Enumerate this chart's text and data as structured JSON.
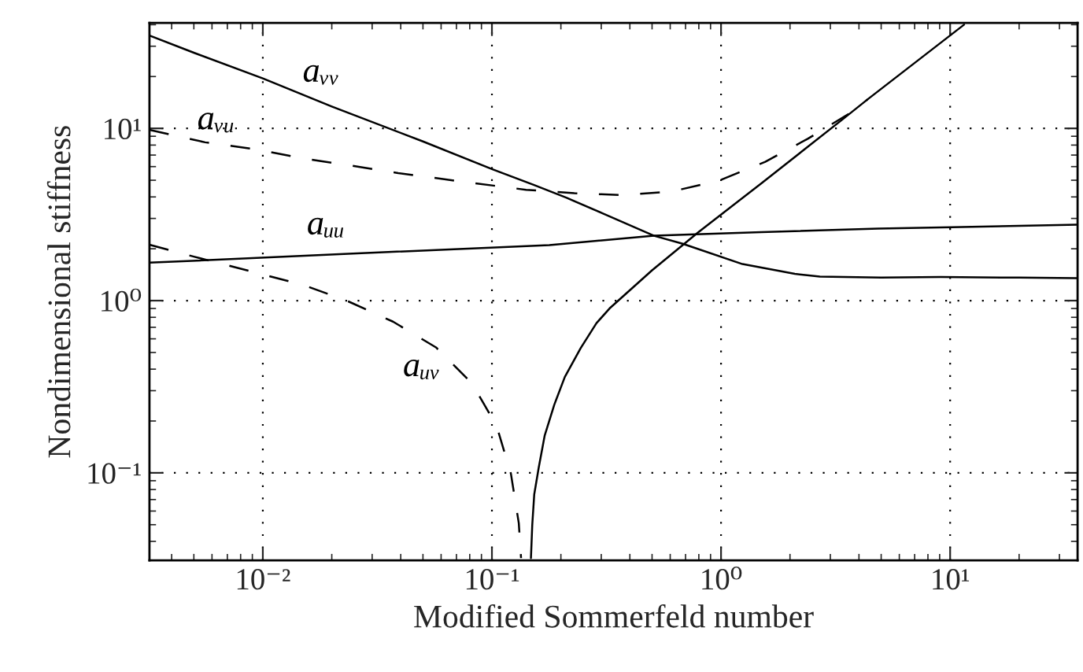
{
  "chart_data": {
    "type": "line",
    "xlabel": "Modified Sommerfeld number",
    "ylabel": "Nondimensional stiffness",
    "log": "xy",
    "xlim": [
      0.0032,
      36
    ],
    "ylim": [
      0.031,
      41
    ],
    "xticks": [
      {
        "value": 0.01,
        "label": "10⁻²"
      },
      {
        "value": 0.1,
        "label": "10⁻¹"
      },
      {
        "value": 1,
        "label": "10⁰"
      },
      {
        "value": 10,
        "label": "10¹"
      }
    ],
    "yticks": [
      {
        "value": 0.1,
        "label": "10⁻¹"
      },
      {
        "value": 1,
        "label": "10⁰"
      },
      {
        "value": 10,
        "label": "10¹"
      }
    ],
    "grid": true,
    "series": [
      {
        "name": "aᵥᵥ",
        "color": "#000000",
        "line_style": "solid",
        "x": [
          0.0032,
          0.005,
          0.01,
          0.02,
          0.05,
          0.1,
          0.152,
          0.212,
          0.3,
          0.51,
          0.68,
          1.24,
          2.1,
          2.7,
          5,
          9.1,
          20,
          36
        ],
        "values": [
          34.6,
          27.5,
          19.5,
          13.4,
          8.4,
          5.8,
          4.7,
          3.95,
          3.24,
          2.38,
          2.14,
          1.63,
          1.43,
          1.38,
          1.36,
          1.37,
          1.36,
          1.35
        ]
      },
      {
        "name": "aᵥᵤ",
        "color": "#000000",
        "line_style": "dashed",
        "x": [
          0.0032,
          0.0056,
          0.0091,
          0.0149,
          0.0239,
          0.039,
          0.075,
          0.141,
          0.229,
          0.373,
          0.61,
          0.99,
          1.56,
          2.39,
          3.78,
          4.38
        ],
        "values": [
          9.8,
          8.3,
          7.6,
          6.7,
          6.1,
          5.5,
          4.9,
          4.4,
          4.2,
          4.1,
          4.3,
          5.0,
          6.4,
          8.7,
          12.6,
          14.8
        ]
      },
      {
        "name": "aᵤᵤ",
        "color": "#000000",
        "line_style": "solid",
        "x": [
          0.0032,
          0.0236,
          0.178,
          0.51,
          1.5,
          4.85,
          10.2,
          36
        ],
        "values": [
          1.66,
          1.87,
          2.1,
          2.38,
          2.5,
          2.62,
          2.67,
          2.76
        ]
      },
      {
        "name": "aᵤᵥ",
        "color": "#000000",
        "line_style": "dashed",
        "x": [
          0.0032,
          0.005,
          0.0094,
          0.0151,
          0.0236,
          0.037,
          0.057,
          0.082,
          0.105,
          0.121,
          0.131,
          0.134
        ],
        "values": [
          2.11,
          1.8,
          1.45,
          1.23,
          0.99,
          0.755,
          0.535,
          0.33,
          0.186,
          0.099,
          0.051,
          0.032
        ]
      },
      {
        "color": "#000000",
        "line_style": "solid",
        "x": [
          0.148,
          0.15,
          0.153,
          0.16,
          0.17,
          0.187,
          0.208,
          0.244,
          0.286,
          0.326,
          0.5,
          0.795,
          1.5,
          3.37,
          4.38,
          11.5
        ],
        "values": [
          0.032,
          0.05,
          0.075,
          0.107,
          0.165,
          0.248,
          0.36,
          0.53,
          0.74,
          0.9,
          1.5,
          2.49,
          4.8,
          11.2,
          14.8,
          40
        ]
      }
    ]
  }
}
